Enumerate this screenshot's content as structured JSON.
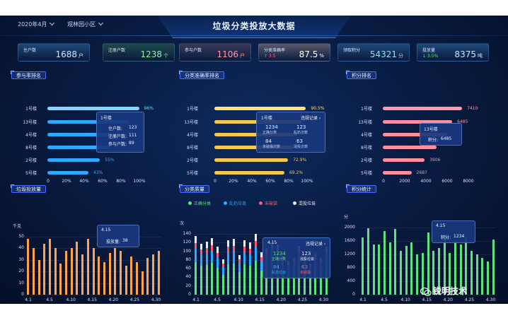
{
  "header": {
    "month_select": "2020年4月",
    "community_select": "观林园小区",
    "title": "垃圾分类投放大数据"
  },
  "stats": [
    {
      "label": "住户数",
      "value": "1688",
      "unit": "户",
      "color": "#cfe3ff",
      "bg": "#1e4a7a"
    },
    {
      "label": "注册户数",
      "value": "1238",
      "unit": "个",
      "color": "#8ff0a8",
      "bg": "#1d4a4a"
    },
    {
      "label": "参与户数",
      "value": "1106",
      "unit": "户",
      "color": "#ff9a9a",
      "bg": "#3a3a5a"
    },
    {
      "label": "分类准确率",
      "value": "87.5",
      "unit": "%",
      "delta": "↑ 3.5",
      "color": "#ffffff",
      "bg": "#5a5a6a"
    },
    {
      "label": "领取积分",
      "value": "54321",
      "unit": "分",
      "color": "#9fd8ff",
      "bg": "#1e4a7a"
    },
    {
      "label": "投放量",
      "value": "8375",
      "unit": "吨",
      "delta": "↓ 3.5%",
      "color": "#cfe3ff",
      "bg": "#1e4a7a"
    }
  ],
  "sections": {
    "participation_rank": "参与率排名",
    "accuracy_rank": "分类准确率排名",
    "points_rank": "积分排名",
    "volume": "垃圾投放量",
    "quality": "分类质量",
    "points_stats": "积分统计"
  },
  "rank_participation": {
    "rows": [
      "1号楼",
      "13号楼",
      "4号楼",
      "8号楼",
      "2号楼",
      "5号楼"
    ],
    "values": [
      96,
      85,
      75,
      65,
      55,
      43
    ],
    "labels": [
      "96%",
      "",
      "",
      "",
      "55%",
      "43%"
    ],
    "colors": [
      "#7fd6ff",
      "#2fa8ff",
      "#2fa8ff",
      "#2fa8ff",
      "#2fa8ff",
      "#2fa8ff"
    ],
    "xticks": [
      "0",
      "20%",
      "40%",
      "60%",
      "80%",
      "100%"
    ],
    "tooltip": {
      "title": "1号楼",
      "rows": [
        [
          "住户数:",
          "123"
        ],
        [
          "注册户数:",
          "111"
        ],
        [
          "参与户数:",
          "89"
        ]
      ]
    }
  },
  "rank_accuracy": {
    "rows": [
      "1号楼",
      "13号楼",
      "4号楼",
      "8号楼",
      "2号楼",
      "5号楼"
    ],
    "values": [
      90.5,
      86,
      82,
      78,
      72.9,
      69.2
    ],
    "labels": [
      "90.5%",
      "",
      "",
      "",
      "72.9%",
      "69.2%"
    ],
    "colors": [
      "#ffe07a",
      "#f5c84c",
      "#f5c84c",
      "#f5c84c",
      "#f5c84c",
      "#f5c84c"
    ],
    "xticks": [
      "0",
      "20%",
      "40%",
      "60%",
      "80%",
      "100%"
    ],
    "tooltip": {
      "title": "1号楼",
      "link": "违规记录",
      "cells": [
        [
          "1234",
          "正确分类"
        ],
        [
          "123",
          "乱扔次数"
        ],
        [
          "84",
          "未破袋次数"
        ],
        [
          "63",
          "混投次数"
        ]
      ]
    }
  },
  "rank_points": {
    "rows": [
      "1号楼",
      "13号楼",
      "4号楼",
      "8号楼",
      "2号楼",
      "5号楼"
    ],
    "values": [
      7410,
      6485,
      6000,
      5000,
      3906,
      2687
    ],
    "labels": [
      "7410",
      "6485",
      "",
      "",
      "3906",
      "2687"
    ],
    "colors": [
      "#ff9aa8",
      "#ff8f9e",
      "#ff8f9e",
      "#ff8f9e",
      "#ff8f9e",
      "#ff8f9e"
    ],
    "xticks": [
      "0",
      "2000",
      "4000",
      "6000",
      "8000"
    ],
    "tooltip": {
      "title": "13号楼",
      "row": [
        "积分:",
        "6485"
      ]
    }
  },
  "chart_volume": {
    "type": "bar",
    "ylabel": "千克",
    "yticks": [
      "50",
      "40",
      "30",
      "20",
      "10",
      "0"
    ],
    "ylim": [
      0,
      50
    ],
    "x_labels": [
      "4.1",
      "4.5",
      "4.10",
      "4.15",
      "4.20",
      "4.25",
      "4.30"
    ],
    "values": [
      48,
      40,
      30,
      44,
      48,
      40,
      27,
      38,
      40,
      46,
      35,
      48,
      40,
      33,
      28,
      36,
      40,
      38,
      25,
      33,
      28,
      20,
      32,
      35,
      38
    ],
    "color": "#ffa24a",
    "tooltip": {
      "date": "4.15",
      "label": "投放量:",
      "value": "38"
    }
  },
  "chart_quality": {
    "type": "stacked-bar",
    "ylabel": "次",
    "yticks": [
      "140",
      "120",
      "100",
      "80",
      "60",
      "40",
      "20",
      "0"
    ],
    "ylim": [
      0,
      140
    ],
    "legend": [
      {
        "name": "正确分类",
        "color": "#5fe07a"
      },
      {
        "name": "乱扔垃圾",
        "color": "#2fa8ff"
      },
      {
        "name": "未破袋",
        "color": "#ff5a6a"
      },
      {
        "name": "混投垃圾",
        "color": "#e8eef8"
      }
    ],
    "x_labels": [
      "4.1",
      "4.5",
      "4.10",
      "4.15",
      "4.20",
      "4.25",
      "4.30"
    ],
    "series_total": [
      135,
      118,
      122,
      130,
      110,
      82,
      125,
      128,
      92,
      126,
      120,
      140,
      98,
      108,
      122,
      115,
      90,
      78,
      85,
      112,
      88,
      72,
      95,
      85,
      110
    ],
    "tooltip": {
      "date": "4.15",
      "link": "违规记录",
      "cells": [
        [
          "1234",
          "正确分类"
        ],
        [
          "123",
          "混投垃圾"
        ],
        [
          "84",
          "乱扔垃圾"
        ],
        [
          "63",
          "未破袋"
        ]
      ]
    }
  },
  "chart_points": {
    "type": "bar",
    "ylabel": "分",
    "yticks": [
      "2000",
      "1600",
      "1200",
      "800",
      "400",
      "0"
    ],
    "ylim": [
      0,
      2000
    ],
    "x_labels": [
      "4.1",
      "4.5",
      "4.10",
      "4.15",
      "4.20",
      "4.25",
      "4.30"
    ],
    "values": [
      1700,
      1980,
      1500,
      1500,
      1900,
      1550,
      1950,
      1300,
      1450,
      1550,
      1200,
      1250,
      1850,
      1300,
      1400,
      1800,
      1250,
      1600,
      1500,
      1700,
      1300,
      1200,
      1100,
      1000,
      1650
    ],
    "color": "#5fe07a",
    "tooltip": {
      "date": "4.15",
      "label": "积分:",
      "value": "1234"
    }
  },
  "watermark": "锐明技术"
}
